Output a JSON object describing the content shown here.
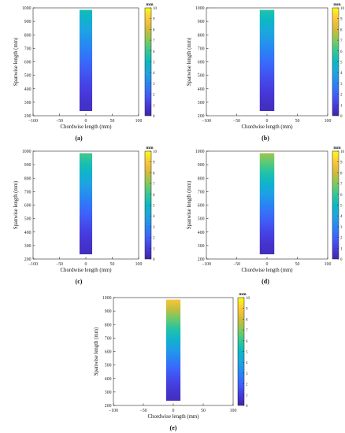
{
  "chart_data": [
    {
      "panel_label": "(a)",
      "type": "heatmap",
      "xlabel": "Chordwise length (mm)",
      "ylabel": "Spanwise length (mm)",
      "xlim": [
        -100,
        100
      ],
      "ylim": [
        200,
        1000
      ],
      "xticks": [
        -100,
        -50,
        0,
        50,
        100
      ],
      "yticks": [
        200,
        300,
        400,
        500,
        600,
        700,
        800,
        900,
        1000
      ],
      "colorbar": {
        "unit": "mm",
        "range": [
          0,
          10
        ],
        "ticks": [
          0,
          1,
          2,
          3,
          4,
          5,
          6,
          7,
          8,
          9,
          10
        ],
        "colormap": "parula"
      },
      "region": {
        "x": [
          -12,
          12
        ],
        "y": [
          235,
          985
        ]
      },
      "profile": {
        "span_y": [
          235,
          985
        ],
        "deflection_mm": [
          0.5,
          5.2
        ]
      }
    },
    {
      "panel_label": "(b)",
      "type": "heatmap",
      "xlabel": "Chordwise length (mm)",
      "ylabel": "Spanwise length (mm)",
      "xlim": [
        -100,
        100
      ],
      "ylim": [
        200,
        1000
      ],
      "xticks": [
        -100,
        -50,
        0,
        50,
        100
      ],
      "yticks": [
        200,
        300,
        400,
        500,
        600,
        700,
        800,
        900,
        1000
      ],
      "colorbar": {
        "unit": "mm",
        "range": [
          0,
          10
        ],
        "ticks": [
          0,
          1,
          2,
          3,
          4,
          5,
          6,
          7,
          8,
          9,
          10
        ],
        "colormap": "parula"
      },
      "region": {
        "x": [
          -12,
          12
        ],
        "y": [
          235,
          985
        ]
      },
      "profile": {
        "span_y": [
          235,
          985
        ],
        "deflection_mm": [
          0.4,
          5.6
        ]
      }
    },
    {
      "panel_label": "(c)",
      "type": "heatmap",
      "xlabel": "Chordwise length (mm)",
      "ylabel": "Spanwise length (mm)",
      "xlim": [
        -100,
        100
      ],
      "ylim": [
        200,
        1000
      ],
      "xticks": [
        -100,
        -50,
        0,
        50,
        100
      ],
      "yticks": [
        200,
        300,
        400,
        500,
        600,
        700,
        800,
        900,
        1000
      ],
      "colorbar": {
        "unit": "mm",
        "range": [
          0,
          10
        ],
        "ticks": [
          0,
          1,
          2,
          3,
          4,
          5,
          6,
          7,
          8,
          9,
          10
        ],
        "colormap": "parula"
      },
      "region": {
        "x": [
          -12,
          12
        ],
        "y": [
          235,
          985
        ]
      },
      "profile": {
        "span_y": [
          235,
          985
        ],
        "deflection_mm": [
          0.4,
          6.2
        ]
      }
    },
    {
      "panel_label": "(d)",
      "type": "heatmap",
      "xlabel": "Chordwise length (mm)",
      "ylabel": "Spanwise length (mm)",
      "xlim": [
        -100,
        100
      ],
      "ylim": [
        200,
        1000
      ],
      "xticks": [
        -100,
        -50,
        0,
        50,
        100
      ],
      "yticks": [
        200,
        300,
        400,
        500,
        600,
        700,
        800,
        900,
        1000
      ],
      "colorbar": {
        "unit": "mm",
        "range": [
          0,
          10
        ],
        "ticks": [
          0,
          1,
          2,
          3,
          4,
          5,
          6,
          7,
          8,
          9,
          10
        ],
        "colormap": "parula"
      },
      "region": {
        "x": [
          -12,
          12
        ],
        "y": [
          235,
          985
        ]
      },
      "profile": {
        "span_y": [
          235,
          985
        ],
        "deflection_mm": [
          0.4,
          7.4
        ]
      }
    },
    {
      "panel_label": "(e)",
      "type": "heatmap",
      "xlabel": "Chordwise length (mm)",
      "ylabel": "Spanwise length (mm)",
      "xlim": [
        -100,
        100
      ],
      "ylim": [
        200,
        1000
      ],
      "xticks": [
        -100,
        -50,
        0,
        50,
        100
      ],
      "yticks": [
        200,
        300,
        400,
        500,
        600,
        700,
        800,
        900,
        1000
      ],
      "colorbar": {
        "unit": "mm",
        "range": [
          0,
          10
        ],
        "ticks": [
          0,
          1,
          2,
          3,
          4,
          5,
          6,
          7,
          8,
          9,
          10
        ],
        "colormap": "parula"
      },
      "region": {
        "x": [
          -12,
          12
        ],
        "y": [
          235,
          985
        ]
      },
      "profile": {
        "span_y": [
          235,
          985
        ],
        "deflection_mm": [
          0.4,
          8.9
        ]
      }
    }
  ]
}
